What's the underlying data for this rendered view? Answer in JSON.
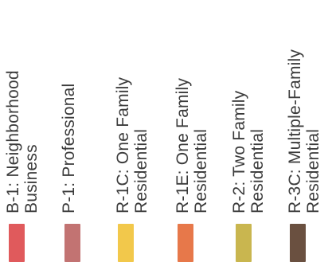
{
  "legend": {
    "items": [
      {
        "code": "B-1:",
        "name": "Neighborhood\nBusiness",
        "color": "#e05a5c"
      },
      {
        "code": "P-1:",
        "name": "Professional",
        "color": "#c27372"
      },
      {
        "code": "R-1C:",
        "name": "One Family\nResidential",
        "color": "#f2c84b"
      },
      {
        "code": "R-1E:",
        "name": "One Family\nResidential",
        "color": "#e7784a"
      },
      {
        "code": "R-2:",
        "name": "Two Family\nResidential",
        "color": "#c9b64f"
      },
      {
        "code": "R-3C:",
        "name": "Multiple-Family\nResidential",
        "color": "#6a5040"
      }
    ]
  }
}
